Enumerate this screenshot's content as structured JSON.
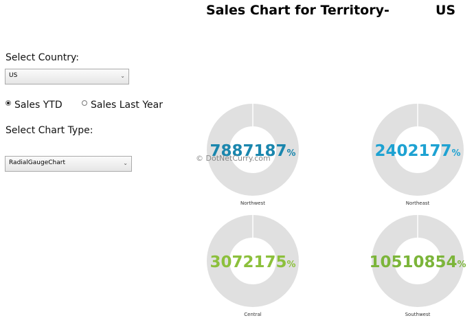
{
  "header": {
    "title": "Sales Chart for Territory-",
    "territory": "US"
  },
  "form": {
    "country_label": "Select Country:",
    "country_value": "US",
    "radios": [
      {
        "label": "Sales YTD",
        "checked": true
      },
      {
        "label": "Sales Last Year",
        "checked": false
      }
    ],
    "chart_type_label": "Select Chart Type:",
    "chart_type_value": "RadialGaugeChart"
  },
  "watermark": "© DotNetCurry.com",
  "gauges": {
    "unit": "%",
    "track_color": "#e0e0e0",
    "items": [
      {
        "region": "Northwest",
        "value": 7887187,
        "color": "#1a86ad"
      },
      {
        "region": "Northeast",
        "value": 2402177,
        "color": "#1ea2d2"
      },
      {
        "region": "Central",
        "value": 3072175,
        "color": "#8cc03c"
      },
      {
        "region": "Southwest",
        "value": 10510854,
        "color": "#7cb53a"
      }
    ]
  }
}
